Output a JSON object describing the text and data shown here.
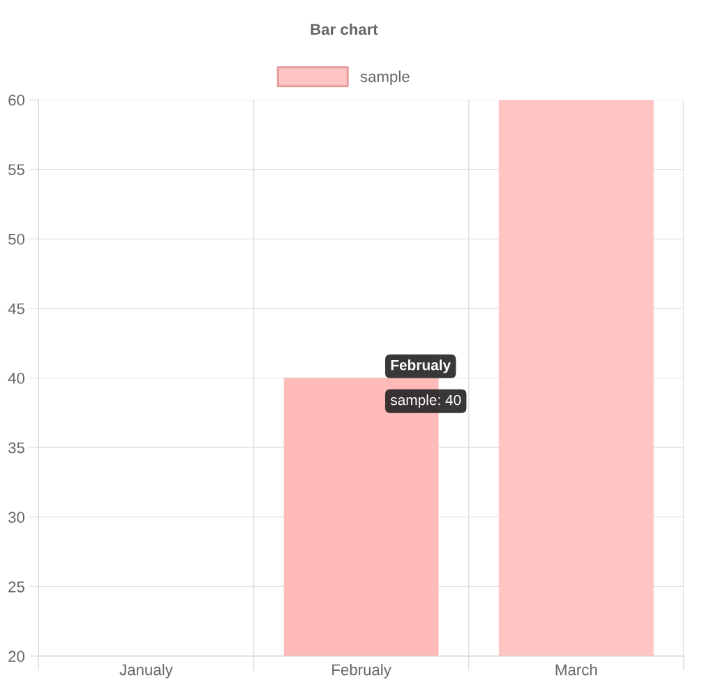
{
  "chart_data": {
    "type": "bar",
    "title": "Bar chart",
    "categories": [
      "Janualy",
      "Februaly",
      "March"
    ],
    "series": [
      {
        "name": "sample",
        "values": [
          null,
          40,
          60
        ],
        "colors": [
          "#ffc4c4",
          "#ffbaba",
          "#ffc4c4"
        ]
      }
    ],
    "ylim": [
      20,
      60
    ],
    "yticks": [
      20,
      25,
      30,
      35,
      40,
      45,
      50,
      55,
      60
    ],
    "grid": true,
    "legend": "top",
    "annotations": [
      {
        "text": "Februaly",
        "x": "Februaly",
        "y": 40
      },
      {
        "text": "sample: 40",
        "x": "Februaly",
        "y": 40
      }
    ]
  }
}
